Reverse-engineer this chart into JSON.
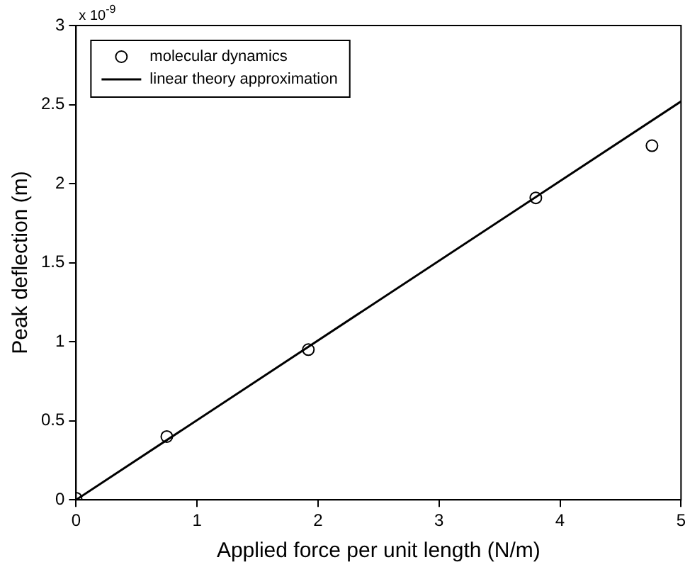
{
  "chart_data": {
    "type": "scatter",
    "xlabel": "Applied force per unit length (N/m)",
    "ylabel": "Peak deflection (m)",
    "annotations": [
      "x 10$^{-9}$"
    ],
    "series": [
      {
        "name": "molecular dynamics",
        "color": "#000000",
        "marker": "circle",
        "x": [
          0,
          0.75,
          1.92,
          3.8,
          4.76
        ],
        "values": [
          0.01,
          0.4,
          0.95,
          1.91,
          2.24
        ]
      },
      {
        "name": "linear theory approximation",
        "type": "line",
        "color": "#000000",
        "marker": "none",
        "line_style": "solid",
        "x": [
          0,
          5
        ],
        "values": [
          0,
          2.52
        ]
      }
    ],
    "xlim": [
      0,
      5
    ],
    "xticks": [
      0,
      1,
      2,
      3,
      4,
      5
    ],
    "ylim": [
      0,
      3
    ],
    "yticks": [
      0,
      0.5,
      1,
      1.5,
      2,
      2.5,
      3
    ],
    "grid": false,
    "legend": "top left"
  }
}
